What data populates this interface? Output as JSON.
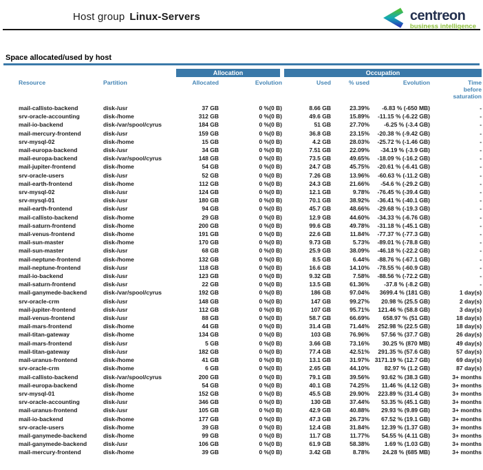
{
  "header": {
    "title_prefix": "Host group",
    "title_name": "Linux-Servers"
  },
  "logo": {
    "name": "centreon",
    "tagline": "business intelligence"
  },
  "section": {
    "title": "Space allocated/used by host"
  },
  "colors": {
    "accent_blue": "#3a79a9",
    "header_text_blue": "#4585b5",
    "logo_navy": "#23304e",
    "logo_green": "#8cbf3a",
    "logo_mark_green": "#4abd3f",
    "logo_mark_teal": "#14aab4",
    "logo_mark_blue": "#2742b8"
  },
  "table": {
    "groups": {
      "allocation": "Allocation",
      "occupation": "Occupation"
    },
    "columns": [
      "Resource",
      "Partition",
      "Allocated",
      "Evolution",
      "Used",
      "% used",
      "Evolution",
      "Time before saturation"
    ],
    "rows": [
      [
        "mail-callisto-backend",
        "disk-/usr",
        "37 GB",
        "0 %(0 B)",
        "8.66 GB",
        "23.39%",
        "-6.83 % (-650 MB)",
        "-"
      ],
      [
        "srv-oracle-accounting",
        "disk-/home",
        "312 GB",
        "0 %(0 B)",
        "49.6 GB",
        "15.89%",
        "-11.15 % (-6.22 GB)",
        "-"
      ],
      [
        "mail-io-backend",
        "disk-/var/spool/cyrus",
        "184 GB",
        "0 %(0 B)",
        "51 GB",
        "27.70%",
        "-6.25 % (-3.4 GB)",
        "-"
      ],
      [
        "mail-mercury-frontend",
        "disk-/usr",
        "159 GB",
        "0 %(0 B)",
        "36.8 GB",
        "23.15%",
        "-20.38 % (-9.42 GB)",
        "-"
      ],
      [
        "srv-mysql-02",
        "disk-/home",
        "15 GB",
        "0 %(0 B)",
        "4.2 GB",
        "28.03%",
        "-25.72 % (-1.46 GB)",
        "-"
      ],
      [
        "mail-europa-backend",
        "disk-/usr",
        "34 GB",
        "0 %(0 B)",
        "7.51 GB",
        "22.09%",
        "-34.19 % (-3.9 GB)",
        "-"
      ],
      [
        "mail-europa-backend",
        "disk-/var/spool/cyrus",
        "148 GB",
        "0 %(0 B)",
        "73.5 GB",
        "49.65%",
        "-18.09 % (-16.2 GB)",
        "-"
      ],
      [
        "mail-jupiter-frontend",
        "disk-/home",
        "54 GB",
        "0 %(0 B)",
        "24.7 GB",
        "45.75%",
        "-20.61 % (-6.41 GB)",
        "-"
      ],
      [
        "srv-oracle-users",
        "disk-/usr",
        "52 GB",
        "0 %(0 B)",
        "7.26 GB",
        "13.96%",
        "-60.63 % (-11.2 GB)",
        "-"
      ],
      [
        "mail-earth-frontend",
        "disk-/home",
        "112 GB",
        "0 %(0 B)",
        "24.3 GB",
        "21.66%",
        "-54.6 % (-29.2 GB)",
        "-"
      ],
      [
        "srv-mysql-02",
        "disk-/usr",
        "124 GB",
        "0 %(0 B)",
        "12.1 GB",
        "9.78%",
        "-76.45 % (-39.4 GB)",
        "-"
      ],
      [
        "srv-mysql-01",
        "disk-/usr",
        "180 GB",
        "0 %(0 B)",
        "70.1 GB",
        "38.92%",
        "-36.41 % (-40.1 GB)",
        "-"
      ],
      [
        "mail-earth-frontend",
        "disk-/usr",
        "94 GB",
        "0 %(0 B)",
        "45.7 GB",
        "48.66%",
        "-29.68 % (-19.3 GB)",
        "-"
      ],
      [
        "mail-callisto-backend",
        "disk-/home",
        "29 GB",
        "0 %(0 B)",
        "12.9 GB",
        "44.60%",
        "-34.33 % (-6.76 GB)",
        "-"
      ],
      [
        "mail-saturn-frontend",
        "disk-/home",
        "200 GB",
        "0 %(0 B)",
        "99.6 GB",
        "49.78%",
        "-31.18 % (-45.1 GB)",
        "-"
      ],
      [
        "mail-venus-frontend",
        "disk-/home",
        "191 GB",
        "0 %(0 B)",
        "22.6 GB",
        "11.84%",
        "-77.37 % (-77.3 GB)",
        "-"
      ],
      [
        "mail-sun-master",
        "disk-/home",
        "170 GB",
        "0 %(0 B)",
        "9.73 GB",
        "5.73%",
        "-89.01 % (-78.8 GB)",
        "-"
      ],
      [
        "mail-sun-master",
        "disk-/usr",
        "68 GB",
        "0 %(0 B)",
        "25.9 GB",
        "38.09%",
        "-46.18 % (-22.2 GB)",
        "-"
      ],
      [
        "mail-neptune-frontend",
        "disk-/home",
        "132 GB",
        "0 %(0 B)",
        "8.5 GB",
        "6.44%",
        "-88.76 % (-67.1 GB)",
        "-"
      ],
      [
        "mail-neptune-frontend",
        "disk-/usr",
        "118 GB",
        "0 %(0 B)",
        "16.6 GB",
        "14.10%",
        "-78.55 % (-60.9 GB)",
        "-"
      ],
      [
        "mail-io-backend",
        "disk-/usr",
        "123 GB",
        "0 %(0 B)",
        "9.32 GB",
        "7.58%",
        "-88.56 % (-72.2 GB)",
        "-"
      ],
      [
        "mail-saturn-frontend",
        "disk-/usr",
        "22 GB",
        "0 %(0 B)",
        "13.5 GB",
        "61.36%",
        "-37.8 % (-8.2 GB)",
        "-"
      ],
      [
        "mail-ganymede-backend",
        "disk-/var/spool/cyrus",
        "192 GB",
        "0 %(0 B)",
        "186 GB",
        "97.04%",
        "3699.4 % (181 GB)",
        "1 day(s)"
      ],
      [
        "srv-oracle-crm",
        "disk-/usr",
        "148 GB",
        "0 %(0 B)",
        "147 GB",
        "99.27%",
        "20.98 % (25.5 GB)",
        "2 day(s)"
      ],
      [
        "mail-jupiter-frontend",
        "disk-/usr",
        "112 GB",
        "0 %(0 B)",
        "107 GB",
        "95.71%",
        "121.46 % (58.8 GB)",
        "3 day(s)"
      ],
      [
        "mail-venus-frontend",
        "disk-/usr",
        "88 GB",
        "0 %(0 B)",
        "58.7 GB",
        "66.69%",
        "658.97 % (51 GB)",
        "18 day(s)"
      ],
      [
        "mail-mars-frontend",
        "disk-/home",
        "44 GB",
        "0 %(0 B)",
        "31.4 GB",
        "71.44%",
        "252.98 % (22.5 GB)",
        "18 day(s)"
      ],
      [
        "mail-titan-gateway",
        "disk-/home",
        "134 GB",
        "0 %(0 B)",
        "103 GB",
        "76.96%",
        "57.56 % (37.7 GB)",
        "26 day(s)"
      ],
      [
        "mail-mars-frontend",
        "disk-/usr",
        "5 GB",
        "0 %(0 B)",
        "3.66 GB",
        "73.16%",
        "30.25 % (870 MB)",
        "49 day(s)"
      ],
      [
        "mail-titan-gateway",
        "disk-/usr",
        "182 GB",
        "0 %(0 B)",
        "77.4 GB",
        "42.51%",
        "291.35 % (57.6 GB)",
        "57 day(s)"
      ],
      [
        "mail-uranus-frontend",
        "disk-/home",
        "41 GB",
        "0 %(0 B)",
        "13.1 GB",
        "31.97%",
        "3171.19 % (12.7 GB)",
        "69 day(s)"
      ],
      [
        "srv-oracle-crm",
        "disk-/home",
        "6 GB",
        "0 %(0 B)",
        "2.65 GB",
        "44.10%",
        "82.97 % (1.2 GB)",
        "87 day(s)"
      ],
      [
        "mail-callisto-backend",
        "disk-/var/spool/cyrus",
        "200 GB",
        "0 %(0 B)",
        "79.1 GB",
        "39.56%",
        "93.62 % (38.3 GB)",
        "3+ months"
      ],
      [
        "mail-europa-backend",
        "disk-/home",
        "54 GB",
        "0 %(0 B)",
        "40.1 GB",
        "74.25%",
        "11.46 % (4.12 GB)",
        "3+ months"
      ],
      [
        "srv-mysql-01",
        "disk-/home",
        "152 GB",
        "0 %(0 B)",
        "45.5 GB",
        "29.90%",
        "223.89 % (31.4 GB)",
        "3+ months"
      ],
      [
        "srv-oracle-accounting",
        "disk-/usr",
        "346 GB",
        "0 %(0 B)",
        "130 GB",
        "37.44%",
        "53.35 % (45.1 GB)",
        "3+ months"
      ],
      [
        "mail-uranus-frontend",
        "disk-/usr",
        "105 GB",
        "0 %(0 B)",
        "42.9 GB",
        "40.88%",
        "29.93 % (9.89 GB)",
        "3+ months"
      ],
      [
        "mail-io-backend",
        "disk-/home",
        "177 GB",
        "0 %(0 B)",
        "47.3 GB",
        "26.73%",
        "67.52 % (19.1 GB)",
        "3+ months"
      ],
      [
        "srv-oracle-users",
        "disk-/home",
        "39 GB",
        "0 %(0 B)",
        "12.4 GB",
        "31.84%",
        "12.39 % (1.37 GB)",
        "3+ months"
      ],
      [
        "mail-ganymede-backend",
        "disk-/home",
        "99 GB",
        "0 %(0 B)",
        "11.7 GB",
        "11.77%",
        "54.55 % (4.11 GB)",
        "3+ months"
      ],
      [
        "mail-ganymede-backend",
        "disk-/usr",
        "106 GB",
        "0 %(0 B)",
        "61.9 GB",
        "58.38%",
        "1.69 % (1.03 GB)",
        "3+ months"
      ],
      [
        "mail-mercury-frontend",
        "disk-/home",
        "39 GB",
        "0 %(0 B)",
        "3.42 GB",
        "8.78%",
        "24.28 % (685 MB)",
        "3+ months"
      ]
    ]
  }
}
